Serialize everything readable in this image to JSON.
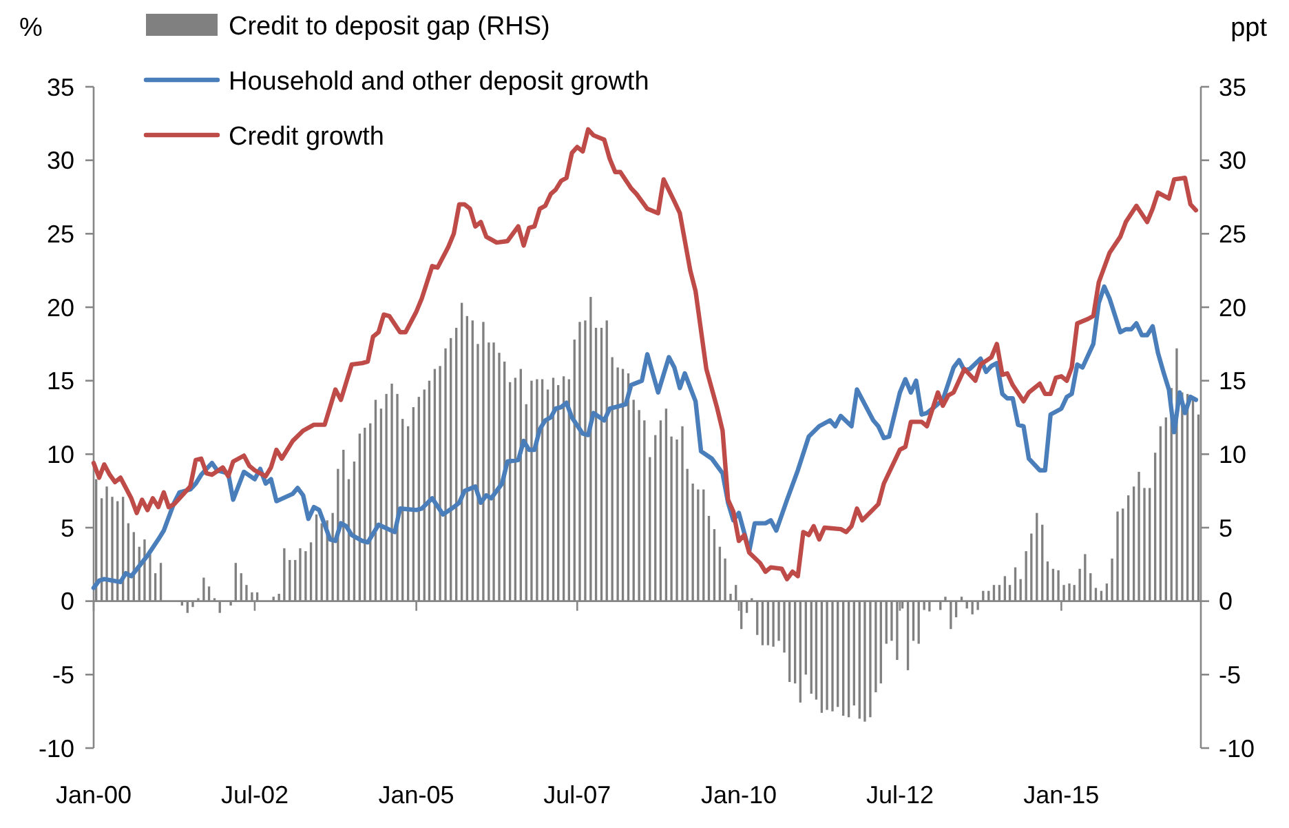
{
  "chart_data": {
    "type": "line",
    "ylabel": "%",
    "y2label": "ppt",
    "legend": "top left",
    "xlim": [
      "2000-01",
      "2017-03"
    ],
    "xticks": [
      {
        "value": "2000-01",
        "label": "Jan-00"
      },
      {
        "value": "2002-07",
        "label": "Jul-02"
      },
      {
        "value": "2005-01",
        "label": "Jan-05"
      },
      {
        "value": "2007-07",
        "label": "Jul-07"
      },
      {
        "value": "2010-01",
        "label": "Jan-10"
      },
      {
        "value": "2012-07",
        "label": "Jul-12"
      },
      {
        "value": "2015-01",
        "label": "Jan-15"
      }
    ],
    "ylim": [
      -10,
      35
    ],
    "yticks": [
      -10,
      -5,
      0,
      5,
      10,
      15,
      20,
      25,
      30,
      35
    ],
    "y2lim": [
      -10,
      35
    ],
    "y2ticks": [
      -10,
      -5,
      0,
      5,
      10,
      15,
      20,
      25,
      30,
      35
    ],
    "x": [
      "2000-01",
      "2000-02",
      "2000-03",
      "2000-04",
      "2000-05",
      "2000-06",
      "2000-07",
      "2000-08",
      "2000-09",
      "2000-10",
      "2000-11",
      "2000-12",
      "2001-01",
      "2001-02",
      "2001-03",
      "2001-04",
      "2001-05",
      "2001-06",
      "2001-07",
      "2001-08",
      "2001-09",
      "2001-10",
      "2001-11",
      "2001-12",
      "2002-01",
      "2002-02",
      "2002-03",
      "2002-04",
      "2002-05",
      "2002-06",
      "2002-07",
      "2002-08",
      "2002-09",
      "2002-10",
      "2002-11",
      "2002-12",
      "2003-01",
      "2003-02",
      "2003-03",
      "2003-04",
      "2003-05",
      "2003-06",
      "2003-07",
      "2003-08",
      "2003-09",
      "2003-10",
      "2003-11",
      "2003-12",
      "2004-01",
      "2004-02",
      "2004-03",
      "2004-04",
      "2004-05",
      "2004-06",
      "2004-07",
      "2004-08",
      "2004-09",
      "2004-10",
      "2004-11",
      "2004-12",
      "2005-01",
      "2005-02",
      "2005-03",
      "2005-04",
      "2005-05",
      "2005-06",
      "2005-07",
      "2005-08",
      "2005-09",
      "2005-10",
      "2005-11",
      "2005-12",
      "2006-01",
      "2006-02",
      "2006-03",
      "2006-04",
      "2006-05",
      "2006-06",
      "2006-07",
      "2006-08",
      "2006-09",
      "2006-10",
      "2006-11",
      "2006-12",
      "2007-01",
      "2007-02",
      "2007-03",
      "2007-04",
      "2007-05",
      "2007-06",
      "2007-07",
      "2007-08",
      "2007-09",
      "2007-10",
      "2007-11",
      "2007-12",
      "2008-01",
      "2008-02",
      "2008-03",
      "2008-04",
      "2008-05",
      "2008-06",
      "2008-07",
      "2008-08",
      "2008-09",
      "2008-10",
      "2008-11",
      "2008-12",
      "2009-01",
      "2009-02",
      "2009-03",
      "2009-04",
      "2009-05",
      "2009-06",
      "2009-07",
      "2009-08",
      "2009-09",
      "2009-10",
      "2009-11",
      "2009-12",
      "2010-01",
      "2010-02",
      "2010-03",
      "2010-04",
      "2010-05",
      "2010-06",
      "2010-07",
      "2010-08",
      "2010-09",
      "2010-10",
      "2010-11",
      "2010-12",
      "2011-01",
      "2011-02",
      "2011-03",
      "2011-04",
      "2011-05",
      "2011-06",
      "2011-07",
      "2011-08",
      "2011-09",
      "2011-10",
      "2011-11",
      "2011-12",
      "2012-01",
      "2012-02",
      "2012-03",
      "2012-04",
      "2012-05",
      "2012-06",
      "2012-07",
      "2012-08",
      "2012-09",
      "2012-10",
      "2012-11",
      "2012-12",
      "2013-01",
      "2013-02",
      "2013-03",
      "2013-04",
      "2013-05",
      "2013-06",
      "2013-07",
      "2013-08",
      "2013-09",
      "2013-10",
      "2013-11",
      "2013-12",
      "2014-01",
      "2014-02",
      "2014-03",
      "2014-04",
      "2014-05",
      "2014-06",
      "2014-07",
      "2014-08",
      "2014-09",
      "2014-10",
      "2014-11",
      "2014-12",
      "2015-01",
      "2015-02",
      "2015-03",
      "2015-04",
      "2015-05",
      "2015-06",
      "2015-07",
      "2015-08",
      "2015-09",
      "2015-10",
      "2015-11",
      "2015-12",
      "2016-01",
      "2016-02",
      "2016-03",
      "2016-04",
      "2016-05",
      "2016-06",
      "2016-07",
      "2016-08",
      "2016-09",
      "2016-10",
      "2016-11",
      "2016-12",
      "2017-01",
      "2017-02"
    ],
    "series": [
      {
        "name": "Credit to deposit gap (RHS)",
        "type": "bar",
        "axis": "y2",
        "color": "#808080",
        "values": [
          8.3,
          7.0,
          7.8,
          7.1,
          6.8,
          7.1,
          5.3,
          4.7,
          3.7,
          4.2,
          3.2,
          1.9,
          2.6,
          0,
          0,
          null,
          -0.3,
          -0.8,
          -0.4,
          0.2,
          1.6,
          1.0,
          0.2,
          -0.8,
          null,
          -0.3,
          2.6,
          1.9,
          1.1,
          0.6,
          0.6,
          0,
          0,
          0.3,
          0.5,
          3.6,
          2.8,
          2.8,
          3.6,
          3.4,
          4.0,
          5.9,
          5.3,
          5.5,
          6.0,
          9.0,
          10.3,
          8.3,
          9.5,
          11.4,
          11.8,
          12.1,
          13.7,
          13.1,
          14.1,
          14.8,
          14.1,
          12.4,
          11.9,
          13.2,
          13.9,
          14.4,
          15.0,
          15.8,
          16.0,
          17.2,
          17.9,
          18.6,
          20.3,
          19.4,
          19.1,
          17.5,
          19.0,
          17.6,
          17.6,
          16.9,
          16.3,
          14.9,
          15.2,
          15.8,
          13.4,
          15.0,
          15.1,
          15.1,
          14.4,
          15.2,
          14.7,
          15.3,
          15.1,
          17.8,
          19.0,
          19.1,
          20.7,
          18.6,
          18.6,
          19.1,
          16.6,
          15.9,
          15.8,
          15.5,
          13.7,
          13.0,
          12.3,
          9.8,
          11.3,
          12.3,
          13.1,
          11.2,
          11.0,
          11.9,
          9.0,
          8.0,
          7.6,
          7.6,
          5.8,
          4.9,
          3.7,
          2.9,
          0.5,
          1.1,
          -1.9,
          -0.8,
          0.2,
          -2.3,
          -3.0,
          -3.0,
          -3.1,
          -2.7,
          -3.5,
          -5.5,
          -5.6,
          -6.9,
          -5.0,
          -6.3,
          -6.7,
          -7.6,
          -7.4,
          -7.5,
          -7.2,
          -7.8,
          -7.9,
          -7.1,
          -8.0,
          -8.2,
          -7.9,
          -6.2,
          -5.6,
          -2.9,
          -2.7,
          -4.0,
          -0.5,
          -4.7,
          -2.7,
          -2.9,
          -0.6,
          -0.7,
          0,
          -0.6,
          0.3,
          -1.9,
          -1.1,
          0.3,
          -0.5,
          -0.9,
          -0.6,
          0.7,
          0.7,
          1.1,
          1.1,
          1.7,
          1.1,
          2.3,
          1.5,
          3.4,
          4.6,
          6.0,
          5.2,
          2.7,
          2.2,
          2.1,
          1.1,
          1.2,
          1.1,
          2.2,
          3.2,
          1.9,
          0.9,
          0.7,
          1.2,
          2.9,
          6.1,
          6.3,
          7.2,
          7.8,
          8.8,
          7.7,
          7.7,
          10.1,
          11.9,
          12.5,
          14.5,
          17.2,
          14.2,
          14.1,
          13.7,
          12.7
        ]
      },
      {
        "name": "Household and other deposit growth",
        "color": "#4a7ebb",
        "x": [
          "2000-01",
          "2000-02",
          "2000-03",
          "2000-06",
          "2000-07",
          "2000-08",
          "2000-11",
          "2001-01",
          "2001-02",
          "2001-04",
          "2001-05",
          "2001-07",
          "2001-08",
          "2001-09",
          "2001-11",
          "2001-12",
          "2002-02",
          "2002-03",
          "2002-05",
          "2002-07",
          "2002-08",
          "2002-09",
          "2002-10",
          "2002-11",
          "2003-02",
          "2003-03",
          "2003-04",
          "2003-05",
          "2003-06",
          "2003-07",
          "2003-09",
          "2003-10",
          "2003-11",
          "2003-12",
          "2004-01",
          "2004-03",
          "2004-04",
          "2004-06",
          "2004-09",
          "2004-10",
          "2005-01",
          "2005-02",
          "2005-04",
          "2005-06",
          "2005-08",
          "2005-09",
          "2005-10",
          "2005-12",
          "2006-01",
          "2006-02",
          "2006-03",
          "2006-05",
          "2006-06",
          "2006-08",
          "2006-09",
          "2006-10",
          "2006-11",
          "2006-12",
          "2007-01",
          "2007-02",
          "2007-03",
          "2007-04",
          "2007-05",
          "2007-06",
          "2007-08",
          "2007-09",
          "2007-10",
          "2007-12",
          "2008-01",
          "2008-02",
          "2008-04",
          "2008-05",
          "2008-07",
          "2008-08",
          "2008-10",
          "2008-12",
          "2009-01",
          "2009-02",
          "2009-03",
          "2009-05",
          "2009-06",
          "2009-08",
          "2009-10",
          "2009-11",
          "2009-12",
          "2010-01",
          "2010-03",
          "2010-04",
          "2010-06",
          "2010-07",
          "2010-08",
          "2010-10",
          "2010-12",
          "2011-02",
          "2011-04",
          "2011-06",
          "2011-07",
          "2011-08",
          "2011-10",
          "2011-11",
          "2012-02",
          "2012-03",
          "2012-04",
          "2012-05",
          "2012-07",
          "2012-08",
          "2012-09",
          "2012-10",
          "2012-11",
          "2012-12",
          "2013-01",
          "2013-03",
          "2013-05",
          "2013-06",
          "2013-07",
          "2013-08",
          "2013-10",
          "2013-11",
          "2013-12",
          "2014-01",
          "2014-02",
          "2014-03",
          "2014-04",
          "2014-05",
          "2014-06",
          "2014-07",
          "2014-09",
          "2014-10",
          "2014-11",
          "2015-01",
          "2015-02",
          "2015-03",
          "2015-04",
          "2015-05",
          "2015-07",
          "2015-08",
          "2015-09",
          "2015-10",
          "2015-12",
          "2016-01",
          "2016-02",
          "2016-03",
          "2016-04",
          "2016-05",
          "2016-06",
          "2016-07",
          "2016-08",
          "2016-09",
          "2016-10",
          "2016-11",
          "2016-12",
          "2017-01",
          "2017-02"
        ],
        "values": [
          0.9,
          1.4,
          1.5,
          1.3,
          1.9,
          1.7,
          3.1,
          4.2,
          4.8,
          6.7,
          7.4,
          7.6,
          8.0,
          8.6,
          9.4,
          8.9,
          8.7,
          6.9,
          8.8,
          8.3,
          9.0,
          8.0,
          8.3,
          6.8,
          7.3,
          7.7,
          7.2,
          5.6,
          6.4,
          6.2,
          4.2,
          4.1,
          5.3,
          5.1,
          4.5,
          4.1,
          4.0,
          5.2,
          4.7,
          6.3,
          6.2,
          6.3,
          7.0,
          5.9,
          6.4,
          6.7,
          7.5,
          7.8,
          6.7,
          7.2,
          7.0,
          8.0,
          9.5,
          9.6,
          10.9,
          10.3,
          10.3,
          11.7,
          12.3,
          12.5,
          13.1,
          13.2,
          13.5,
          12.5,
          11.4,
          11.3,
          12.8,
          12.3,
          13.1,
          13.2,
          13.4,
          14.7,
          15.0,
          16.8,
          14.2,
          16.6,
          15.9,
          14.5,
          15.5,
          13.6,
          10.2,
          9.7,
          8.7,
          6.7,
          5.5,
          6.0,
          3.4,
          5.3,
          5.3,
          5.5,
          4.8,
          6.9,
          8.9,
          11.2,
          11.9,
          12.3,
          11.9,
          12.6,
          11.9,
          14.4,
          12.3,
          11.9,
          11.1,
          11.2,
          14.2,
          15.1,
          14.2,
          15.0,
          12.7,
          12.8,
          13.1,
          13.7,
          15.9,
          16.4,
          15.7,
          15.8,
          16.5,
          15.6,
          16.0,
          16.2,
          14.1,
          13.8,
          13.8,
          12.0,
          11.9,
          9.7,
          8.9,
          8.9,
          12.7,
          13.1,
          13.9,
          14.1,
          16.1,
          15.9,
          17.5,
          20.3,
          21.4,
          20.6,
          18.3,
          18.5,
          18.5,
          18.9,
          18.1,
          18.1,
          18.7,
          16.9,
          15.6,
          14.4,
          11.5,
          14.2,
          12.8,
          13.9,
          13.7
        ]
      },
      {
        "name": "Credit growth",
        "color": "#be4b48",
        "x": [
          "2000-01",
          "2000-02",
          "2000-03",
          "2000-04",
          "2000-05",
          "2000-06",
          "2000-08",
          "2000-09",
          "2000-10",
          "2000-11",
          "2000-12",
          "2001-01",
          "2001-02",
          "2001-03",
          "2001-04",
          "2001-07",
          "2001-08",
          "2001-09",
          "2001-10",
          "2001-11",
          "2002-01",
          "2002-02",
          "2002-03",
          "2002-05",
          "2002-06",
          "2002-07",
          "2002-09",
          "2002-10",
          "2002-11",
          "2002-12",
          "2003-02",
          "2003-04",
          "2003-06",
          "2003-08",
          "2003-10",
          "2003-11",
          "2004-01",
          "2004-03",
          "2004-04",
          "2004-05",
          "2004-06",
          "2004-07",
          "2004-08",
          "2004-10",
          "2004-11",
          "2005-01",
          "2005-02",
          "2005-04",
          "2005-05",
          "2005-07",
          "2005-08",
          "2005-09",
          "2005-10",
          "2005-11",
          "2005-12",
          "2006-01",
          "2006-02",
          "2006-04",
          "2006-06",
          "2006-08",
          "2006-09",
          "2006-10",
          "2006-11",
          "2006-12",
          "2007-01",
          "2007-02",
          "2007-03",
          "2007-04",
          "2007-05",
          "2007-06",
          "2007-07",
          "2007-08",
          "2007-09",
          "2007-10",
          "2007-12",
          "2008-01",
          "2008-02",
          "2008-03",
          "2008-05",
          "2008-06",
          "2008-08",
          "2008-10",
          "2008-11",
          "2009-01",
          "2009-02",
          "2009-04",
          "2009-05",
          "2009-07",
          "2009-09",
          "2009-10",
          "2009-11",
          "2009-12",
          "2010-01",
          "2010-02",
          "2010-03",
          "2010-05",
          "2010-06",
          "2010-07",
          "2010-09",
          "2010-10",
          "2010-11",
          "2010-12",
          "2011-01",
          "2011-02",
          "2011-03",
          "2011-04",
          "2011-05",
          "2011-08",
          "2011-09",
          "2011-10",
          "2011-11",
          "2011-12",
          "2012-03",
          "2012-04",
          "2012-07",
          "2012-08",
          "2012-09",
          "2012-11",
          "2012-12",
          "2013-02",
          "2013-03",
          "2013-04",
          "2013-05",
          "2013-07",
          "2013-09",
          "2013-10",
          "2013-12",
          "2014-01",
          "2014-02",
          "2014-03",
          "2014-04",
          "2014-06",
          "2014-07",
          "2014-09",
          "2014-10",
          "2014-11",
          "2014-12",
          "2015-01",
          "2015-02",
          "2015-03",
          "2015-04",
          "2015-06",
          "2015-07",
          "2015-08",
          "2015-10",
          "2015-12",
          "2016-01",
          "2016-03",
          "2016-05",
          "2016-06",
          "2016-07",
          "2016-09",
          "2016-10",
          "2016-12",
          "2017-01",
          "2017-02"
        ],
        "values": [
          9.4,
          8.4,
          9.3,
          8.6,
          8.1,
          8.4,
          7.0,
          6.0,
          6.9,
          6.2,
          7.0,
          6.4,
          7.4,
          6.4,
          6.6,
          7.8,
          9.6,
          9.7,
          8.7,
          8.6,
          9.1,
          8.5,
          9.5,
          9.9,
          9.2,
          8.9,
          8.5,
          9.1,
          10.3,
          9.7,
          10.9,
          11.6,
          12.0,
          12.0,
          14.4,
          13.7,
          16.1,
          16.2,
          16.3,
          18.0,
          18.3,
          19.5,
          19.4,
          18.3,
          18.3,
          19.7,
          20.6,
          22.8,
          22.7,
          24.1,
          25.0,
          27.0,
          27.0,
          26.7,
          25.5,
          25.8,
          24.8,
          24.4,
          24.5,
          25.5,
          24.2,
          25.4,
          25.5,
          26.7,
          26.9,
          27.7,
          28.0,
          28.6,
          28.8,
          30.5,
          30.9,
          30.6,
          32.1,
          31.7,
          31.4,
          30.1,
          29.2,
          29.2,
          28.1,
          27.7,
          26.7,
          26.4,
          28.7,
          27.2,
          26.4,
          22.5,
          21.1,
          15.8,
          13.1,
          11.6,
          6.9,
          6.1,
          4.1,
          4.5,
          3.3,
          2.6,
          2.0,
          2.3,
          2.2,
          1.5,
          2.0,
          1.7,
          4.7,
          4.5,
          5.1,
          4.2,
          5.0,
          4.9,
          4.7,
          5.1,
          6.3,
          5.5,
          6.6,
          8.0,
          10.3,
          10.5,
          12.2,
          12.2,
          11.9,
          14.2,
          13.3,
          14.0,
          14.2,
          15.8,
          15.0,
          16.1,
          16.6,
          17.5,
          15.4,
          15.5,
          14.7,
          13.6,
          14.2,
          14.8,
          14.1,
          14.1,
          15.2,
          15.3,
          15.0,
          15.9,
          18.9,
          19.2,
          19.4,
          21.7,
          23.7,
          24.8,
          25.8,
          26.9,
          25.8,
          26.7,
          27.8,
          27.4,
          28.7,
          28.8,
          27.0,
          26.6
        ]
      }
    ]
  }
}
